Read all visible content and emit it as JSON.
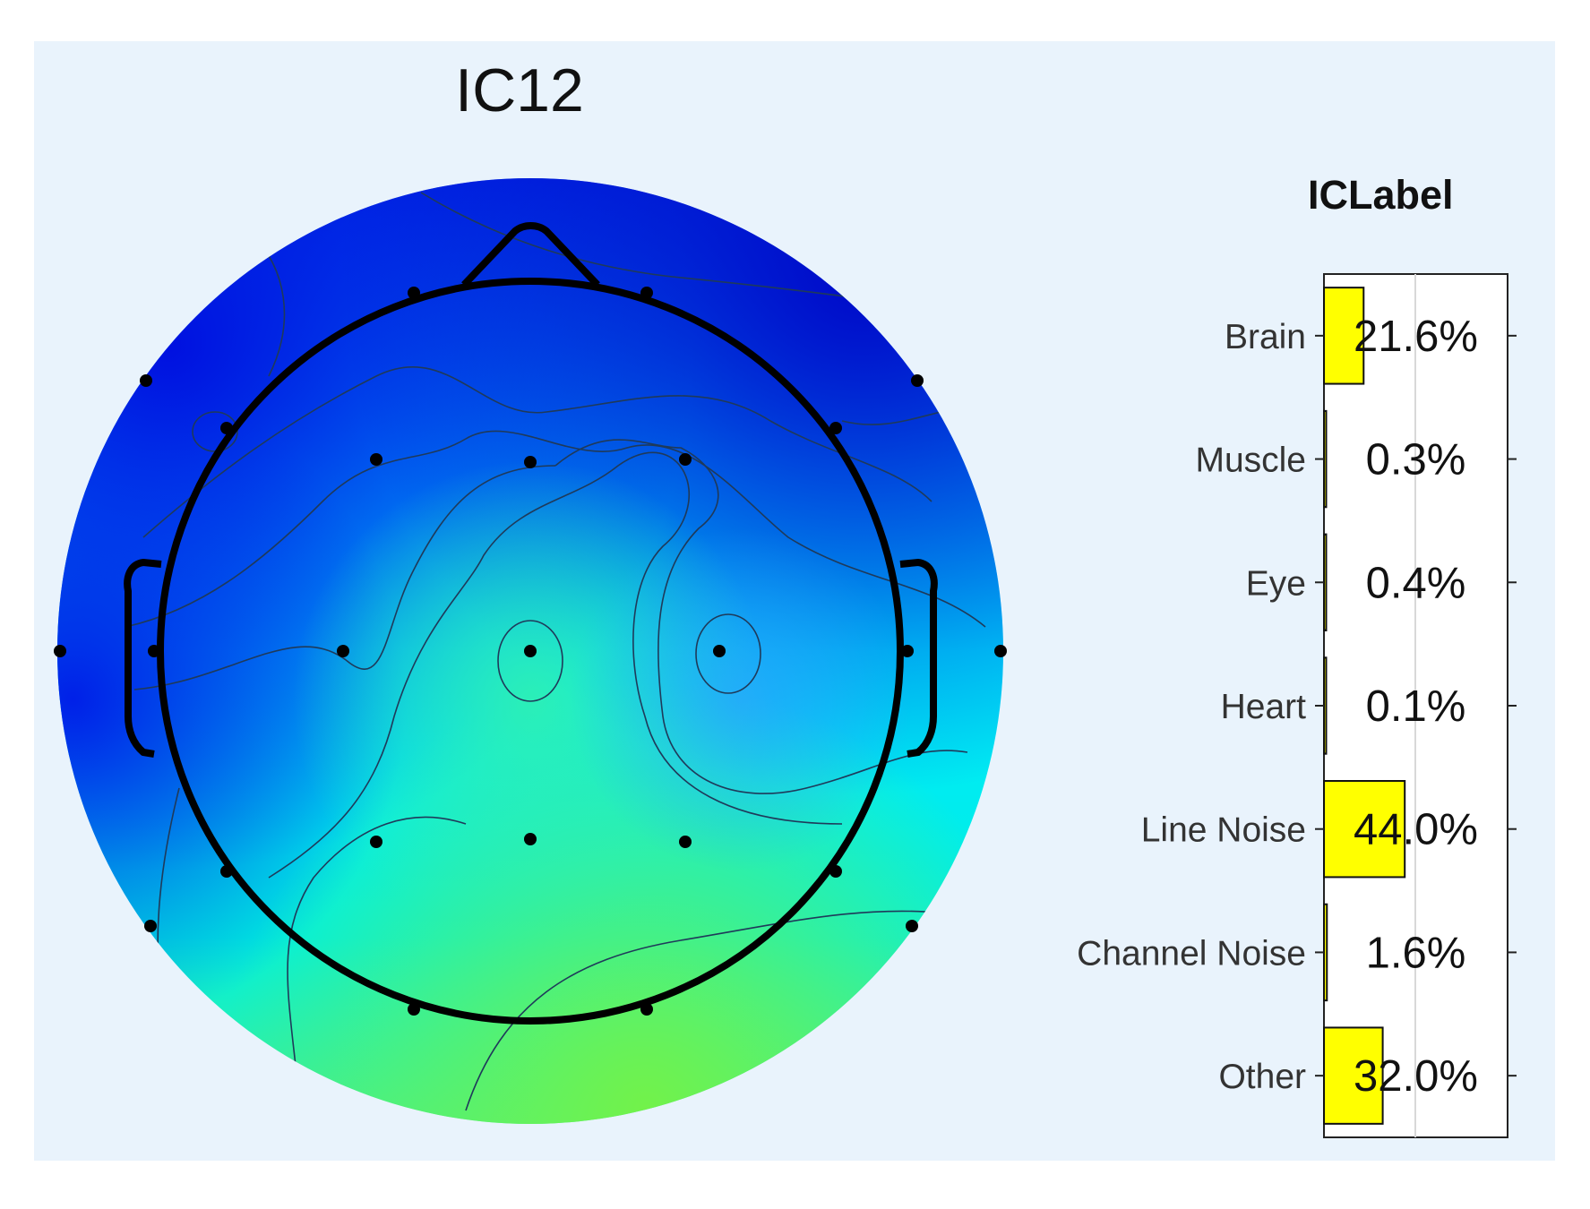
{
  "chart_data": [
    {
      "type": "heatmap",
      "title": "IC12",
      "description_kind": "scalp-topography",
      "colormap": [
        "#0010d8",
        "#0050f0",
        "#00c8ff",
        "#00f0f0",
        "#40f080",
        "#70f050"
      ],
      "electrodes_shown": 32
    },
    {
      "type": "bar",
      "orientation": "horizontal",
      "title": "ICLabel",
      "categories": [
        "Brain",
        "Muscle",
        "Eye",
        "Heart",
        "Line Noise",
        "Channel Noise",
        "Other"
      ],
      "values": [
        21.6,
        0.3,
        0.4,
        0.1,
        44.0,
        1.6,
        32.0
      ],
      "value_labels": [
        "21.6%",
        "0.3%",
        "0.4%",
        "0.1%",
        "44.0%",
        "1.6%",
        "32.0%"
      ],
      "xlim": [
        0,
        100
      ],
      "bar_color": "#ffff00",
      "grid": true
    }
  ]
}
